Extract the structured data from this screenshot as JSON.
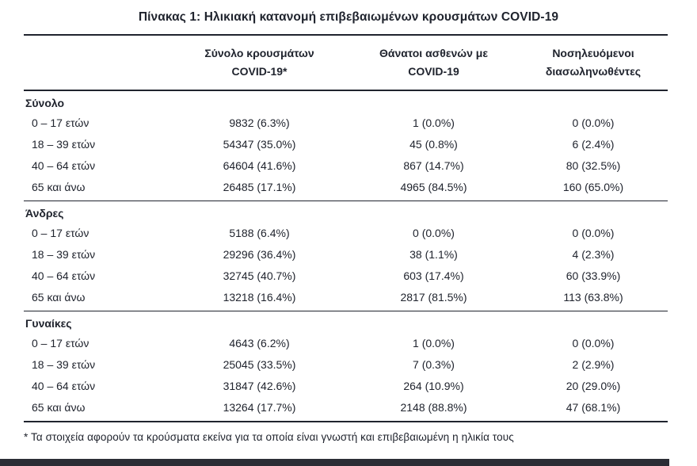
{
  "title": "Πίνακας 1: Ηλικιακή κατανομή επιβεβαιωμένων κρουσμάτων COVID-19",
  "table": {
    "columns": [
      {
        "line1": "Σύνολο κρουσμάτων",
        "line2": "COVID-19*"
      },
      {
        "line1": "Θάνατοι ασθενών με",
        "line2": "COVID-19"
      },
      {
        "line1": "Νοσηλευόμενοι",
        "line2": "διασωληνωθέντες"
      }
    ],
    "sections": [
      {
        "label": "Σύνολο",
        "rows": [
          {
            "age": "0 – 17 ετών",
            "cases": "9832 (6.3%)",
            "deaths": "1 (0.0%)",
            "intubated": "0 (0.0%)"
          },
          {
            "age": "18 – 39 ετών",
            "cases": "54347 (35.0%)",
            "deaths": "45 (0.8%)",
            "intubated": "6 (2.4%)"
          },
          {
            "age": "40 – 64 ετών",
            "cases": "64604 (41.6%)",
            "deaths": "867 (14.7%)",
            "intubated": "80 (32.5%)"
          },
          {
            "age": "65 και άνω",
            "cases": "26485 (17.1%)",
            "deaths": "4965 (84.5%)",
            "intubated": "160 (65.0%)"
          }
        ]
      },
      {
        "label": "Άνδρες",
        "rows": [
          {
            "age": "0 – 17 ετών",
            "cases": "5188 (6.4%)",
            "deaths": "0 (0.0%)",
            "intubated": "0 (0.0%)"
          },
          {
            "age": "18 – 39 ετών",
            "cases": "29296 (36.4%)",
            "deaths": "38 (1.1%)",
            "intubated": "4 (2.3%)"
          },
          {
            "age": "40 – 64 ετών",
            "cases": "32745 (40.7%)",
            "deaths": "603 (17.4%)",
            "intubated": "60 (33.9%)"
          },
          {
            "age": "65 και άνω",
            "cases": "13218 (16.4%)",
            "deaths": "2817 (81.5%)",
            "intubated": "113 (63.8%)"
          }
        ]
      },
      {
        "label": "Γυναίκες",
        "rows": [
          {
            "age": "0 – 17 ετών",
            "cases": "4643 (6.2%)",
            "deaths": "1 (0.0%)",
            "intubated": "0 (0.0%)"
          },
          {
            "age": "18 – 39 ετών",
            "cases": "25045 (33.5%)",
            "deaths": "7 (0.3%)",
            "intubated": "2 (2.9%)"
          },
          {
            "age": "40 – 64 ετών",
            "cases": "31847 (42.6%)",
            "deaths": "264 (10.9%)",
            "intubated": "20 (29.0%)"
          },
          {
            "age": "65 και άνω",
            "cases": "13264 (17.7%)",
            "deaths": "2148 (88.8%)",
            "intubated": "47 (68.1%)"
          }
        ]
      }
    ],
    "footnote": "* Τα στοιχεία αφορούν τα κρούσματα εκείνα για τα οποία είναι γνωστή και επιβεβαιωμένη η ηλικία τους"
  },
  "colors": {
    "text": "#20242e",
    "rule_lines": "#20242e",
    "bottom_bar": "#2b2d35",
    "background": "#ffffff"
  }
}
